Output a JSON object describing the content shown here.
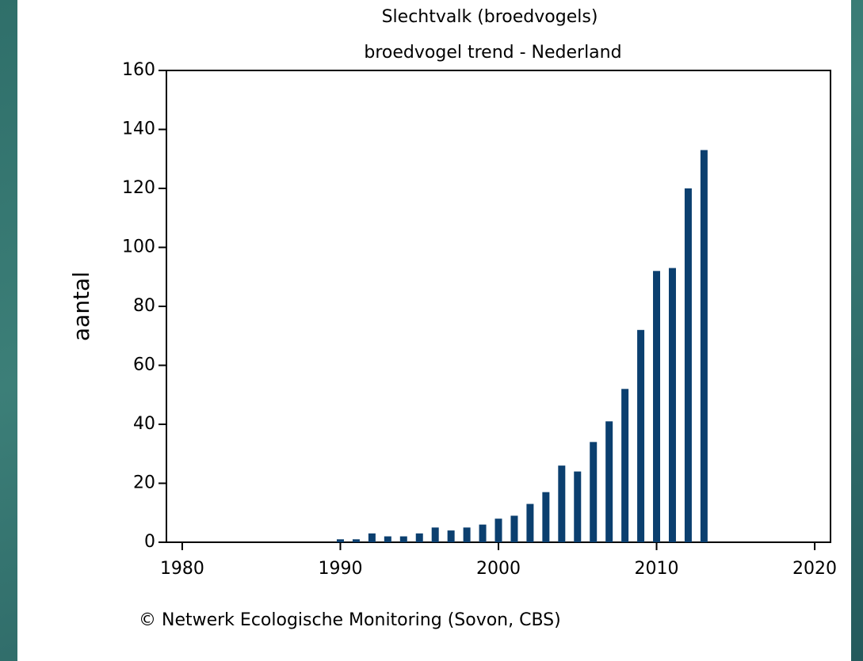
{
  "chart_data": {
    "type": "bar",
    "title": "Slechtvalk (broedvogels)",
    "subtitle": "broedvogel trend - Nederland",
    "y_label": "aantal",
    "footer": "© Netwerk Ecologische Monitoring (Sovon, CBS)",
    "x": [
      1990,
      1991,
      1992,
      1993,
      1994,
      1995,
      1996,
      1997,
      1998,
      1999,
      2000,
      2001,
      2002,
      2003,
      2004,
      2005,
      2006,
      2007,
      2008,
      2009,
      2010,
      2011,
      2012,
      2013
    ],
    "values": [
      1,
      1,
      3,
      2,
      2,
      3,
      5,
      4,
      5,
      6,
      8,
      9,
      13,
      17,
      26,
      24,
      34,
      41,
      52,
      72,
      92,
      93,
      120,
      133
    ],
    "color": "#0b3f6f",
    "xlim": [
      1979,
      2021
    ],
    "xticks": [
      1980,
      1990,
      2000,
      2010,
      2020
    ],
    "ylim": [
      0,
      160
    ],
    "yticks": [
      0,
      20,
      40,
      60,
      80,
      100,
      120,
      140,
      160
    ]
  }
}
